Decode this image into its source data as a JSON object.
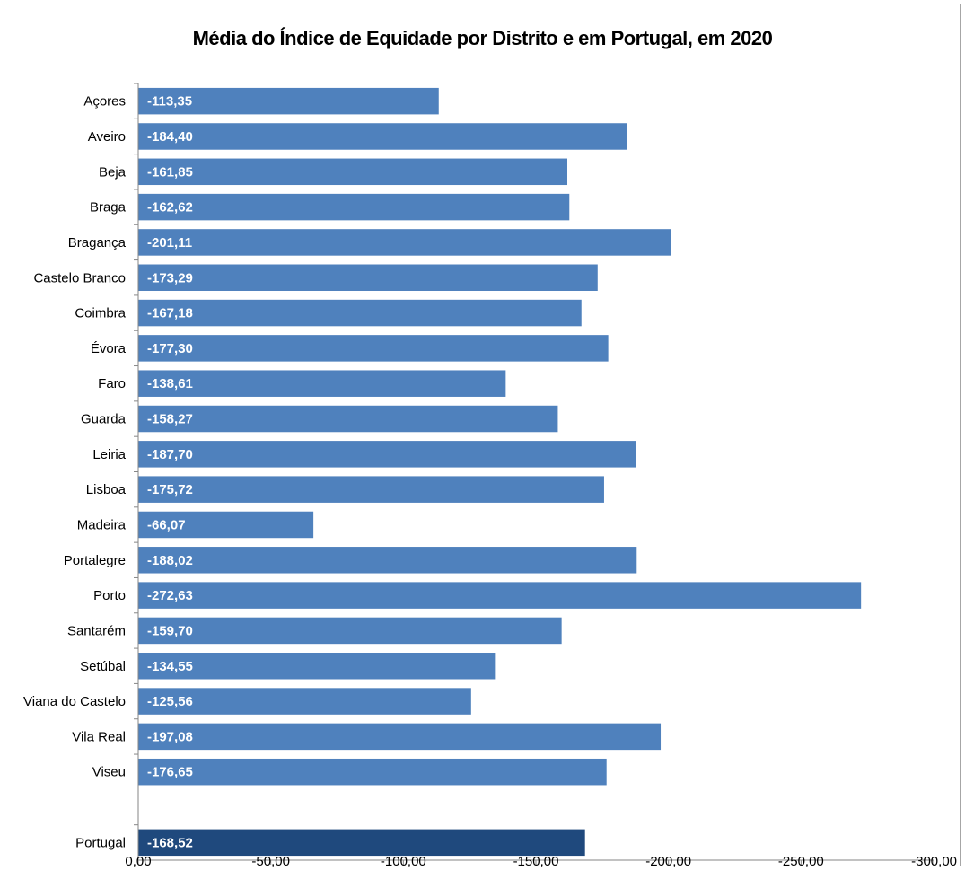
{
  "chart_data": {
    "type": "bar",
    "orientation": "horizontal",
    "title": "Média do Índice de Equidade por Distrito  e em Portugal, em 2020",
    "categories": [
      "Açores",
      "Aveiro",
      "Beja",
      "Braga",
      "Bragança",
      "Castelo Branco",
      "Coimbra",
      "Évora",
      "Faro",
      "Guarda",
      "Leiria",
      "Lisboa",
      "Madeira",
      "Portalegre",
      "Porto",
      "Santarém",
      "Setúbal",
      "Viana do Castelo",
      "Vila Real",
      "Viseu",
      "",
      "Portugal"
    ],
    "values": [
      -113.35,
      -184.4,
      -161.85,
      -162.62,
      -201.11,
      -173.29,
      -167.18,
      -177.3,
      -138.61,
      -158.27,
      -187.7,
      -175.72,
      -66.07,
      -188.02,
      -272.63,
      -159.7,
      -134.55,
      -125.56,
      -197.08,
      -176.65,
      null,
      -168.52
    ],
    "data_labels": [
      "-113,35",
      "-184,40",
      "-161,85",
      "-162,62",
      "-201,11",
      "-173,29",
      "-167,18",
      "-177,30",
      "-138,61",
      "-158,27",
      "-187,70",
      "-175,72",
      "-66,07",
      "-188,02",
      "-272,63",
      "-159,70",
      "-134,55",
      "-125,56",
      "-197,08",
      "-176,65",
      "",
      "-168,52"
    ],
    "xlim": [
      0,
      -300
    ],
    "x_ticks": [
      0,
      -50,
      -100,
      -150,
      -200,
      -250,
      -300
    ],
    "x_tick_labels": [
      "0,00",
      "-50,00",
      "-100,00",
      "-150,00",
      "-200,00",
      "-250,00",
      "-300,00"
    ],
    "xlabel": "",
    "ylabel": "",
    "grid": false,
    "legend": "none",
    "colors": {
      "district": "#4f81bd",
      "highlight": "#1f497d",
      "axis": "#868686"
    },
    "highlight_category": "Portugal"
  }
}
